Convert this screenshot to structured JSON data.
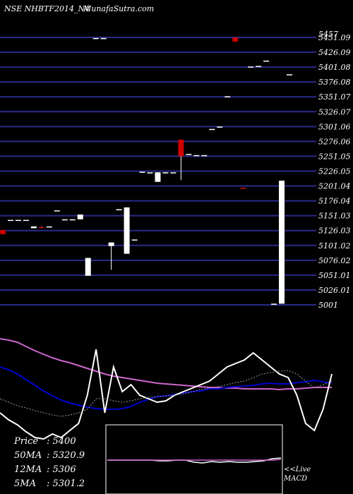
{
  "header": {
    "symbol": "NSE NHBTF2014_N4",
    "site": "MunafaSutra.com"
  },
  "chart_data": [
    {
      "type": "candlestick",
      "y_ticks": [
        "5457",
        "5451.09",
        "5426.09",
        "5401.08",
        "5376.08",
        "5351.07",
        "5326.07",
        "5301.06",
        "5276.06",
        "5251.05",
        "5226.05",
        "5201.04",
        "5176.04",
        "5151.03",
        "5126.03",
        "5101.02",
        "5076.02",
        "5051.01",
        "5026.01",
        "5001"
      ],
      "ylim": [
        5001,
        5457
      ],
      "grid": true,
      "candles": [
        {
          "o": 5120,
          "h": 5127,
          "l": 5120,
          "c": 5127,
          "color": "#cc0000"
        },
        {
          "o": 5144,
          "h": 5144,
          "l": 5144,
          "c": 5144,
          "color": "#ffffff"
        },
        {
          "o": 5144,
          "h": 5144,
          "l": 5144,
          "c": 5144,
          "color": "#ffffff"
        },
        {
          "o": 5144,
          "h": 5144,
          "l": 5144,
          "c": 5144,
          "color": "#ffffff"
        },
        {
          "o": 5133,
          "h": 5133,
          "l": 5130,
          "c": 5130,
          "color": "#ffffff"
        },
        {
          "o": 5131,
          "h": 5133,
          "l": 5130,
          "c": 5132,
          "color": "#cc0000"
        },
        {
          "o": 5133,
          "h": 5133,
          "l": 5133,
          "c": 5133,
          "color": "#ffffff"
        },
        {
          "o": 5160,
          "h": 5160,
          "l": 5160,
          "c": 5160,
          "color": "#ffffff"
        },
        {
          "o": 5145,
          "h": 5145,
          "l": 5145,
          "c": 5145,
          "color": "#ffffff"
        },
        {
          "o": 5145,
          "h": 5145,
          "l": 5145,
          "c": 5145,
          "color": "#ffffff"
        },
        {
          "o": 5145,
          "h": 5153,
          "l": 5145,
          "c": 5153,
          "color": "#ffffff"
        },
        {
          "o": 5050,
          "h": 5080,
          "l": 5050,
          "c": 5080,
          "color": "#ffffff"
        },
        {
          "o": 5450,
          "h": 5450,
          "l": 5450,
          "c": 5450,
          "color": "#ffffff"
        },
        {
          "o": 5450,
          "h": 5450,
          "l": 5450,
          "c": 5450,
          "color": "#ffffff"
        },
        {
          "o": 5100,
          "h": 5106,
          "l": 5060,
          "c": 5106,
          "color": "#ffffff"
        },
        {
          "o": 5162,
          "h": 5162,
          "l": 5162,
          "c": 5162,
          "color": "#ffffff"
        },
        {
          "o": 5087,
          "h": 5165,
          "l": 5087,
          "c": 5165,
          "color": "#ffffff"
        },
        {
          "o": 5111,
          "h": 5111,
          "l": 5111,
          "c": 5111,
          "color": "#ffffff"
        },
        {
          "o": 5225,
          "h": 5225,
          "l": 5225,
          "c": 5225,
          "color": "#ffffff"
        },
        {
          "o": 5224,
          "h": 5224,
          "l": 5224,
          "c": 5224,
          "color": "#ffffff"
        },
        {
          "o": 5208,
          "h": 5224,
          "l": 5208,
          "c": 5224,
          "color": "#ffffff"
        },
        {
          "o": 5224,
          "h": 5224,
          "l": 5224,
          "c": 5224,
          "color": "#ffffff"
        },
        {
          "o": 5224,
          "h": 5224,
          "l": 5224,
          "c": 5224,
          "color": "#ffffff"
        },
        {
          "o": 5279,
          "h": 5279,
          "l": 5211,
          "c": 5251,
          "color": "#cc0000"
        },
        {
          "o": 5255,
          "h": 5255,
          "l": 5255,
          "c": 5255,
          "color": "#ffffff"
        },
        {
          "o": 5253,
          "h": 5253,
          "l": 5253,
          "c": 5253,
          "color": "#ffffff"
        },
        {
          "o": 5253,
          "h": 5253,
          "l": 5253,
          "c": 5253,
          "color": "#ffffff"
        },
        {
          "o": 5297,
          "h": 5297,
          "l": 5297,
          "c": 5297,
          "color": "#ffffff"
        },
        {
          "o": 5301,
          "h": 5301,
          "l": 5301,
          "c": 5301,
          "color": "#ffffff"
        },
        {
          "o": 5352,
          "h": 5352,
          "l": 5352,
          "c": 5352,
          "color": "#ffffff"
        },
        {
          "o": 5451,
          "h": 5451,
          "l": 5444,
          "c": 5444,
          "color": "#cc0000"
        },
        {
          "o": 5198,
          "h": 5198,
          "l": 5197,
          "c": 5197,
          "color": "#cc0000"
        },
        {
          "o": 5402,
          "h": 5402,
          "l": 5402,
          "c": 5402,
          "color": "#ffffff"
        },
        {
          "o": 5403,
          "h": 5403,
          "l": 5403,
          "c": 5403,
          "color": "#ffffff"
        },
        {
          "o": 5412,
          "h": 5412,
          "l": 5412,
          "c": 5412,
          "color": "#ffffff"
        },
        {
          "o": 5003,
          "h": 5003,
          "l": 5003,
          "c": 5003,
          "color": "#ffffff"
        },
        {
          "o": 5003,
          "h": 5210,
          "l": 5003,
          "c": 5210,
          "color": "#ffffff"
        },
        {
          "o": 5389,
          "h": 5389,
          "l": 5389,
          "c": 5389,
          "color": "#ffffff"
        }
      ]
    },
    {
      "type": "line",
      "panel": "moving-averages",
      "series": [
        {
          "color": "#cc66cc",
          "values": [
            60,
            58,
            55,
            49,
            43,
            38,
            33,
            29,
            26,
            22,
            18,
            14,
            10,
            7,
            5,
            3,
            1,
            -1,
            -3,
            -4,
            -5,
            -6,
            -7,
            -8,
            -9,
            -9,
            -10,
            -10,
            -11,
            -11,
            -11,
            -11,
            -12,
            -11,
            -11,
            -10,
            -9,
            -9,
            -9
          ]
        },
        {
          "color": "#0000cc",
          "values": [
            20,
            16,
            10,
            2,
            -6,
            -14,
            -21,
            -27,
            -31,
            -34,
            -37,
            -39,
            -40,
            -40,
            -39,
            -36,
            -30,
            -26,
            -22,
            -21,
            -19,
            -17,
            -15,
            -14,
            -11,
            -11,
            -9,
            -8,
            -7,
            -6,
            -4,
            -3,
            -4,
            -4,
            -2,
            -1,
            1,
            -1,
            -3
          ]
        },
        {
          "color": "#ffffff",
          "values": [
            -45,
            -55,
            -62,
            -72,
            -80,
            -82,
            -75,
            -80,
            -70,
            -60,
            -20,
            45,
            -45,
            20,
            -15,
            -5,
            -20,
            -25,
            -30,
            -28,
            -20,
            -15,
            -10,
            -5,
            0,
            10,
            20,
            25,
            30,
            40,
            30,
            20,
            10,
            5,
            -20,
            -60,
            -70,
            -40,
            10
          ]
        },
        {
          "color": "#999999",
          "values": [
            -25,
            -30,
            -35,
            -38,
            -42,
            -45,
            -48,
            -50,
            -48,
            -45,
            -40,
            -25,
            -25,
            -28,
            -30,
            -28,
            -25,
            -23,
            -22,
            -21,
            -20,
            -18,
            -15,
            -12,
            -10,
            -8,
            -5,
            -2,
            0,
            5,
            10,
            12,
            14,
            15,
            10,
            0,
            -10,
            -5,
            0
          ]
        }
      ]
    },
    {
      "type": "line",
      "panel": "macd",
      "series": [
        {
          "color": "#ffffff",
          "values": [
            0,
            0,
            0,
            0,
            0,
            0,
            -1,
            -1,
            0,
            0,
            -3,
            -4,
            -2,
            -3,
            -2,
            -3,
            -3,
            -2,
            -1,
            2,
            3
          ]
        },
        {
          "color": "#cc66cc",
          "values": [
            0,
            0,
            0,
            0,
            0,
            0,
            0,
            0,
            0,
            0,
            0,
            0,
            0,
            0,
            0,
            0,
            0,
            0,
            0,
            0,
            1
          ]
        }
      ]
    }
  ],
  "info": {
    "rows": [
      {
        "label": "Price",
        "value": ": 5400"
      },
      {
        "label": "50MA",
        "value": ": 5320.9"
      },
      {
        "label": "12MA",
        "value": ": 5306"
      },
      {
        "label": "5MA",
        "value": ": 5301.2"
      }
    ]
  },
  "macd_label": {
    "line1": "<<Live",
    "line2": "MACD"
  }
}
